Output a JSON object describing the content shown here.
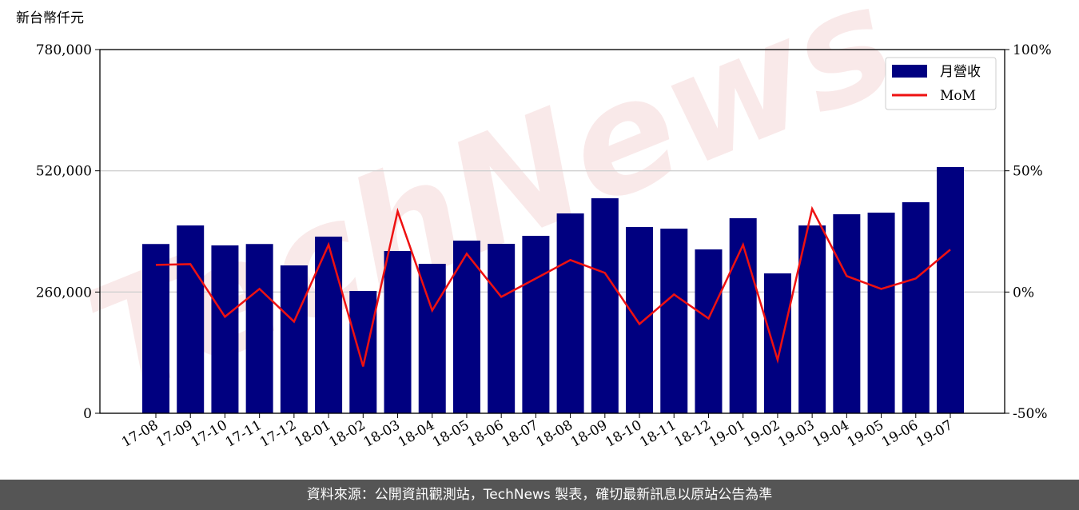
{
  "chart_data": {
    "type": "bar-line",
    "watermark": "TechNews",
    "ylabel": "新台幣仟元",
    "categories": [
      "17-08",
      "17-09",
      "17-10",
      "17-11",
      "17-12",
      "18-01",
      "18-02",
      "18-03",
      "18-04",
      "18-05",
      "18-06",
      "18-07",
      "18-08",
      "18-09",
      "18-10",
      "18-11",
      "18-12",
      "19-01",
      "19-02",
      "19-03",
      "19-04",
      "19-05",
      "19-06",
      "19-07"
    ],
    "series": [
      {
        "name": "月營收",
        "color": "#000080",
        "values": [
          363000,
          402800,
          360000,
          363000,
          317100,
          378800,
          262300,
          348000,
          320500,
          370300,
          363400,
          380500,
          428600,
          461100,
          399400,
          396000,
          351400,
          418300,
          300000,
          402800,
          426800,
          430300,
          452600,
          528000
        ]
      },
      {
        "name": "MoM",
        "color": "#ee1111",
        "axis": "y2",
        "values": [
          11.2,
          11.5,
          -10.2,
          1.3,
          -12.2,
          19.5,
          -30.7,
          33.3,
          -7.6,
          15.8,
          -2.0,
          5.6,
          13.2,
          7.9,
          -13.2,
          -1.0,
          -10.9,
          19.5,
          -28.0,
          34.3,
          6.6,
          1.3,
          5.6,
          17.5
        ]
      }
    ],
    "ylim": [
      0,
      780000
    ],
    "yticks": [
      0,
      {
        "value": 260000,
        "label": "260,000"
      },
      {
        "value": 520000,
        "label": "520,000"
      },
      {
        "value": 780000,
        "label": "780,000"
      }
    ],
    "y2lim": [
      -50,
      100
    ],
    "y2ticks": [
      {
        "value": -50,
        "label": "-50%"
      },
      {
        "value": 0,
        "label": "0%"
      },
      {
        "value": 50,
        "label": "50%"
      },
      {
        "value": 100,
        "label": "100%"
      }
    ],
    "grid": true,
    "legend": "upper-right",
    "footer": "資料來源：公開資訊觀測站，TechNews 製表，確切最新訊息以原站公告為準"
  }
}
